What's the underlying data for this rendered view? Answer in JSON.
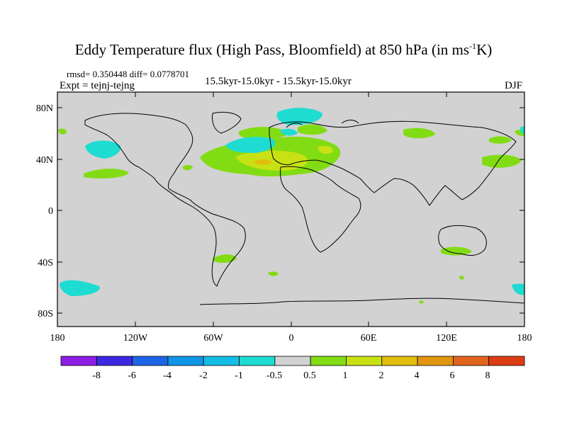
{
  "title": {
    "main": "Eddy Temperature flux (High Pass, Bloomfield) at 850 hPa (in ms",
    "sup": "-1",
    "end": "K)"
  },
  "stats": "rmsd= 0.350448  diff= 0.0778701",
  "expt": "Expt = tejnj-tejng",
  "period": "15.5kyr-15.0kyr - 15.5kyr-15.0kyr",
  "season": "DJF",
  "lat_labels": [
    "80N",
    "40N",
    "0",
    "40S",
    "80S"
  ],
  "lon_labels": [
    "180",
    "120W",
    "60W",
    "0",
    "60E",
    "120E",
    "180"
  ],
  "colorbar": {
    "labels": [
      "-8",
      "-6",
      "-4",
      "-2",
      "-1",
      "-0.5",
      "0.5",
      "1",
      "2",
      "4",
      "6",
      "8"
    ],
    "colors": [
      "#8c1ee6",
      "#3c28e1",
      "#1e64e6",
      "#0f96e6",
      "#14bee6",
      "#1edcd2",
      "#d2d2d2",
      "#82dc14",
      "#c8e114",
      "#e1be0f",
      "#e1960f",
      "#e1641e",
      "#dc3c14"
    ]
  },
  "colors": {
    "background": "#d2d2d2",
    "coast": "#000000"
  }
}
